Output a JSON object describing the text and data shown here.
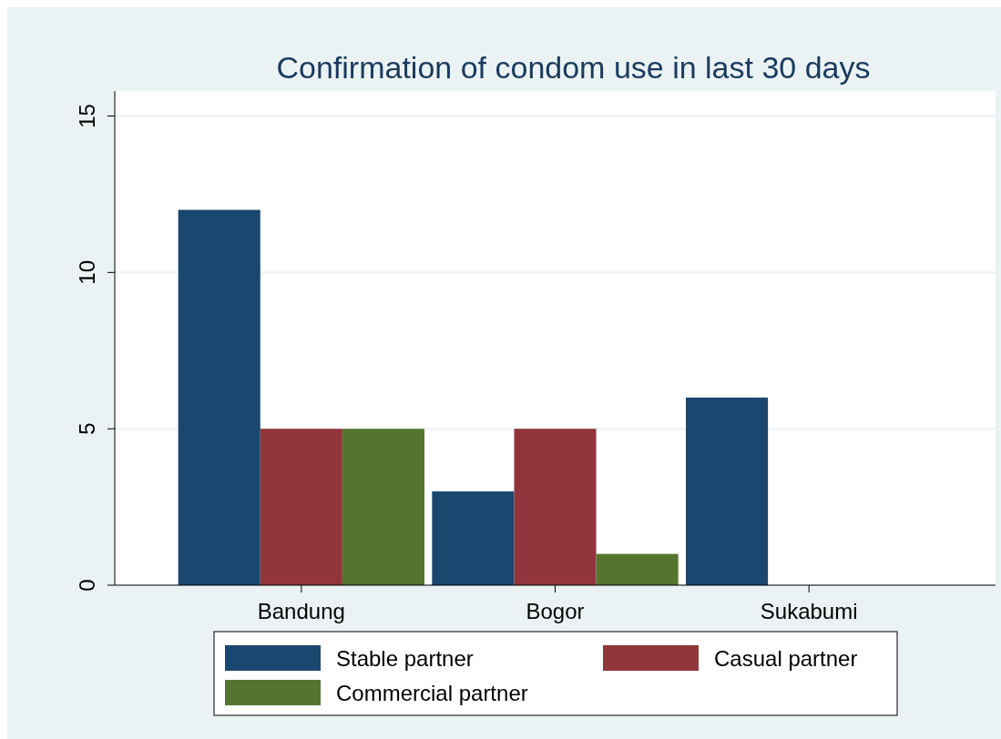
{
  "chart_data": {
    "type": "bar",
    "title": "Confirmation of condom use in last 30 days",
    "categories": [
      "Bandung",
      "Bogor",
      "Sukabumi"
    ],
    "series": [
      {
        "name": "Stable partner",
        "color": "#1a476f",
        "values": [
          12,
          3,
          6
        ]
      },
      {
        "name": "Casual partner",
        "color": "#90353b",
        "values": [
          5,
          5,
          0
        ]
      },
      {
        "name": "Commercial partner",
        "color": "#55752f",
        "values": [
          5,
          1,
          0
        ]
      }
    ],
    "ylim": [
      0,
      15.8
    ],
    "yticks": [
      0,
      5,
      10,
      15
    ],
    "grid": "y",
    "legend": "bottom"
  }
}
